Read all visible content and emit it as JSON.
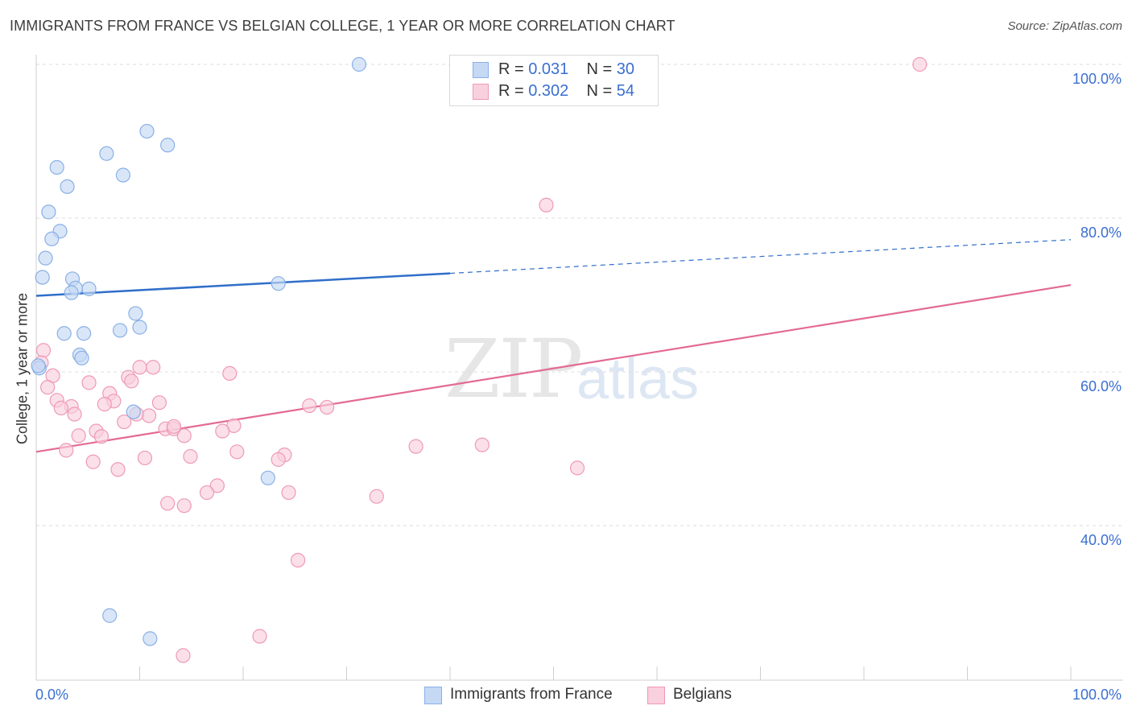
{
  "title": "IMMIGRANTS FROM FRANCE VS BELGIAN COLLEGE, 1 YEAR OR MORE CORRELATION CHART",
  "source": "Source: ZipAtlas.com",
  "watermark": {
    "zip": "ZIP",
    "atlas": "atlas"
  },
  "legend_top": [
    {
      "r_label": "R =",
      "r_value": "0.031",
      "n_label": "N =",
      "n_value": "30"
    },
    {
      "r_label": "R =",
      "r_value": "0.302",
      "n_label": "N =",
      "n_value": "54"
    }
  ],
  "legend_bottom": [
    "Immigrants from France",
    "Belgians"
  ],
  "colors": {
    "france_fill": "#c5d9f5",
    "france_stroke": "#8ab0e6",
    "france_line": "#2f6fc9",
    "belgian_fill": "#f9d0dd",
    "belgian_stroke": "#ee9ab5",
    "belgian_line": "#e36a93",
    "tick_label": "#3a6fd0",
    "grid": "#dcdcdc"
  },
  "chart_data": {
    "type": "scatter",
    "title": "IMMIGRANTS FROM FRANCE VS BELGIAN COLLEGE, 1 YEAR OR MORE CORRELATION CHART",
    "xlabel": "",
    "ylabel": "College, 1 year or more",
    "xlim": [
      0,
      100
    ],
    "ylim": [
      20,
      102
    ],
    "x_tick_labels": [
      "0.0%",
      "100.0%"
    ],
    "y_ticks": [
      40,
      60,
      80,
      100
    ],
    "y_tick_labels": [
      "40.0%",
      "60.0%",
      "80.0%",
      "100.0%"
    ],
    "series": [
      {
        "name": "Immigrants from France",
        "R": 0.031,
        "N": 30,
        "trend": {
          "start": [
            0,
            69.9
          ],
          "end": [
            100,
            77.2
          ],
          "solid_until": 40
        },
        "points": [
          [
            31.2,
            100.0
          ],
          [
            10.7,
            91.3
          ],
          [
            12.7,
            89.5
          ],
          [
            6.8,
            88.4
          ],
          [
            2.0,
            86.6
          ],
          [
            8.4,
            85.6
          ],
          [
            3.0,
            84.1
          ],
          [
            1.2,
            80.8
          ],
          [
            2.3,
            78.3
          ],
          [
            1.5,
            77.3
          ],
          [
            0.9,
            74.8
          ],
          [
            0.6,
            72.3
          ],
          [
            3.5,
            72.1
          ],
          [
            3.8,
            70.9
          ],
          [
            5.1,
            70.8
          ],
          [
            3.4,
            70.3
          ],
          [
            23.4,
            71.5
          ],
          [
            9.6,
            67.6
          ],
          [
            10.0,
            65.8
          ],
          [
            8.1,
            65.4
          ],
          [
            2.7,
            65.0
          ],
          [
            4.6,
            65.0
          ],
          [
            4.2,
            62.2
          ],
          [
            4.4,
            61.8
          ],
          [
            0.3,
            60.5
          ],
          [
            9.4,
            54.8
          ],
          [
            22.4,
            46.2
          ],
          [
            7.1,
            28.3
          ],
          [
            11.0,
            25.3
          ],
          [
            0.2,
            60.8
          ]
        ]
      },
      {
        "name": "Belgians",
        "R": 0.302,
        "N": 54,
        "trend": {
          "start": [
            0,
            49.6
          ],
          "end": [
            100,
            71.3
          ]
        },
        "points": [
          [
            85.4,
            100.0
          ],
          [
            49.3,
            81.7
          ],
          [
            0.7,
            62.8
          ],
          [
            1.6,
            59.5
          ],
          [
            10.0,
            60.6
          ],
          [
            11.3,
            60.6
          ],
          [
            18.7,
            59.8
          ],
          [
            8.9,
            59.3
          ],
          [
            9.2,
            58.8
          ],
          [
            5.1,
            58.6
          ],
          [
            1.1,
            58.0
          ],
          [
            7.1,
            57.2
          ],
          [
            2.0,
            56.3
          ],
          [
            7.5,
            56.2
          ],
          [
            11.9,
            56.0
          ],
          [
            6.6,
            55.8
          ],
          [
            3.4,
            55.5
          ],
          [
            2.4,
            55.3
          ],
          [
            26.4,
            55.6
          ],
          [
            28.1,
            55.4
          ],
          [
            3.7,
            54.5
          ],
          [
            10.9,
            54.3
          ],
          [
            8.5,
            53.5
          ],
          [
            19.1,
            53.0
          ],
          [
            12.5,
            52.6
          ],
          [
            13.3,
            52.6
          ],
          [
            5.8,
            52.3
          ],
          [
            4.1,
            51.7
          ],
          [
            6.3,
            51.6
          ],
          [
            14.3,
            51.7
          ],
          [
            36.7,
            50.3
          ],
          [
            43.1,
            50.5
          ],
          [
            2.9,
            49.8
          ],
          [
            19.4,
            49.6
          ],
          [
            24.0,
            49.2
          ],
          [
            14.9,
            49.0
          ],
          [
            23.4,
            48.6
          ],
          [
            10.5,
            48.8
          ],
          [
            5.5,
            48.3
          ],
          [
            7.9,
            47.3
          ],
          [
            52.3,
            47.5
          ],
          [
            17.5,
            45.2
          ],
          [
            16.5,
            44.3
          ],
          [
            24.4,
            44.3
          ],
          [
            32.9,
            43.8
          ],
          [
            12.7,
            42.9
          ],
          [
            14.3,
            42.6
          ],
          [
            25.3,
            35.5
          ],
          [
            21.6,
            25.6
          ],
          [
            14.2,
            23.1
          ],
          [
            13.3,
            52.9
          ],
          [
            9.7,
            54.5
          ],
          [
            0.5,
            61.2
          ],
          [
            18.0,
            52.3
          ]
        ]
      }
    ]
  }
}
